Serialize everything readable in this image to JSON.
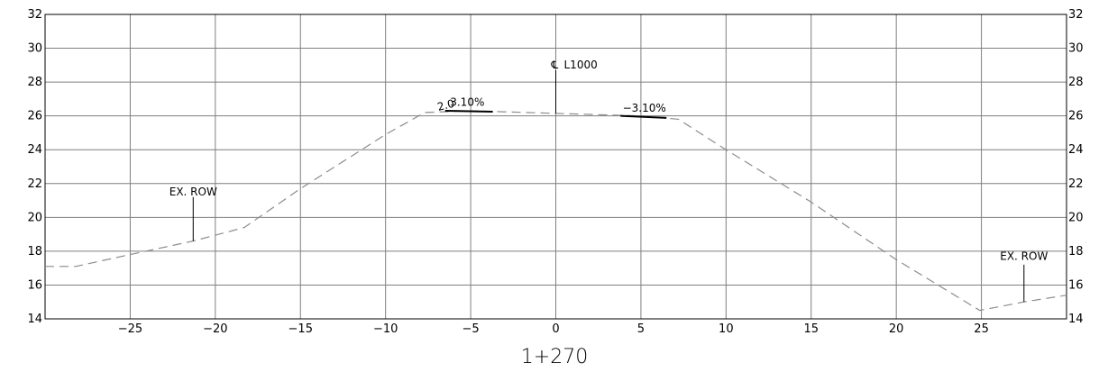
{
  "station_label": "1+270",
  "chart_data": {
    "type": "line",
    "xlim": [
      -30,
      30
    ],
    "ylim": [
      14,
      32
    ],
    "x_ticks": [
      -25,
      -20,
      -15,
      -10,
      -5,
      0,
      5,
      10,
      15,
      20,
      25
    ],
    "x_tick_labels": [
      "−25",
      "−20",
      "−15",
      "−10",
      "−5",
      "0",
      "5",
      "10",
      "15",
      "20",
      "25"
    ],
    "y_ticks": [
      14,
      16,
      18,
      20,
      22,
      24,
      26,
      28,
      30,
      32
    ],
    "y_tick_labels": [
      "14",
      "16",
      "18",
      "20",
      "22",
      "24",
      "26",
      "28",
      "30",
      "32"
    ],
    "grid": true,
    "series": [
      {
        "style": "dashed",
        "points": [
          [
            -30,
            17.1
          ],
          [
            -28.2,
            17.1
          ],
          [
            -25,
            17.8
          ],
          [
            -21.3,
            18.6
          ],
          [
            -18.3,
            19.4
          ],
          [
            -15,
            21.7
          ],
          [
            -10,
            24.9
          ],
          [
            -7.7,
            26.2
          ],
          [
            -5,
            26.3
          ],
          [
            0,
            26.15
          ],
          [
            5,
            26.0
          ],
          [
            7.2,
            25.8
          ],
          [
            10,
            24.0
          ],
          [
            15,
            20.9
          ],
          [
            20,
            17.5
          ],
          [
            24.9,
            14.5
          ],
          [
            27.5,
            15.0
          ],
          [
            30,
            15.4
          ]
        ]
      }
    ],
    "pavement_segments": [
      [
        [
          -6.5,
          26.3
        ],
        [
          -3.7,
          26.25
        ]
      ],
      [
        [
          3.8,
          26.0
        ],
        [
          6.5,
          25.88
        ]
      ]
    ],
    "annotations": {
      "centerline": {
        "symbol": "℄",
        "text": "L1000",
        "x": 0,
        "y_top": 28.7,
        "y_bottom": 26.15
      },
      "row_left": {
        "text": "EX. ROW",
        "x": -21.3,
        "y_text": 21.3,
        "y_top": 21.2,
        "y_bottom": 18.6
      },
      "row_right": {
        "text": "EX. ROW",
        "x": 27.5,
        "y_text": 17.5,
        "y_top": 17.2,
        "y_bottom": 15.0
      },
      "slope_left": {
        "text": "3.10%",
        "x": -5.2,
        "y": 26.6
      },
      "slope_left_overlap": {
        "text": "2.0",
        "x": -6.9,
        "y": 26.3
      },
      "slope_right": {
        "text": "−3.10%",
        "x": 5.2,
        "y": 26.25
      }
    }
  }
}
